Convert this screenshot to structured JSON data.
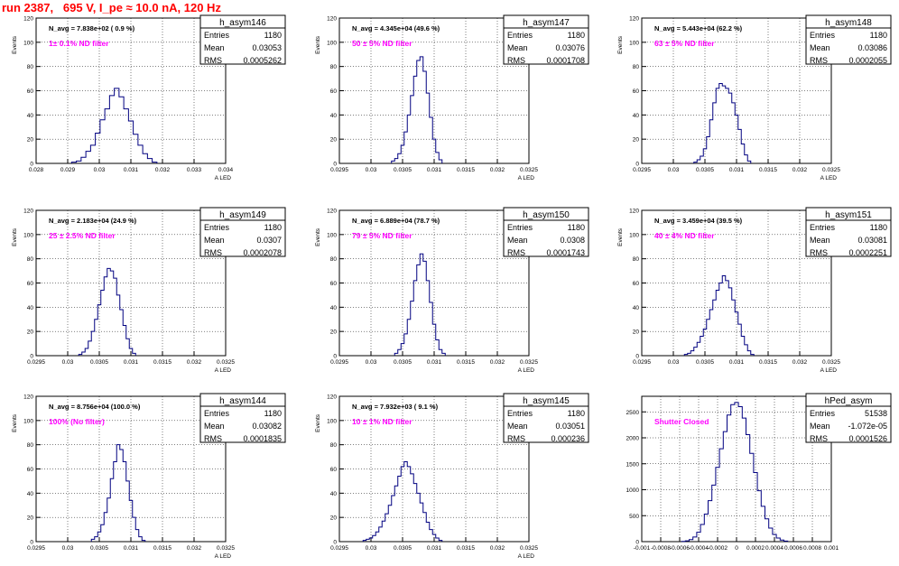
{
  "page": {
    "title": "run 2387,   695 V, I_pe ≈ 10.0 nA, 120 Hz"
  },
  "chart_data": [
    {
      "type": "bar",
      "title": "h_asym146",
      "stats": [
        [
          "Entries",
          "1180"
        ],
        [
          "Mean",
          "0.03053"
        ],
        [
          "RMS",
          "0.0005262"
        ]
      ],
      "annotation": "N_avg = 7.838e+02 ( 0.9 %)",
      "filter_label": "1± 0.1% ND filter",
      "xlabel": "A_LED",
      "ylabel": "Events",
      "xlim": [
        0.028,
        0.034
      ],
      "ylim": [
        0,
        120
      ],
      "xticks": [
        0.028,
        0.029,
        0.03,
        0.031,
        0.032,
        0.033,
        0.034
      ],
      "xtick_labels": [
        "0.028",
        "0.029",
        "0.03",
        "0.031",
        "0.032",
        "0.033",
        "0.034"
      ],
      "yticks": [
        0,
        20,
        40,
        60,
        80,
        100,
        120
      ],
      "ytick_labels": [
        "0",
        "20",
        "40",
        "60",
        "80",
        "100",
        "120"
      ],
      "grid": true,
      "x": [
        0.0292,
        0.02935,
        0.0295,
        0.02965,
        0.0298,
        0.02995,
        0.0301,
        0.03025,
        0.0304,
        0.03055,
        0.0307,
        0.03085,
        0.031,
        0.03115,
        0.0313,
        0.03145,
        0.0316,
        0.03175
      ],
      "values": [
        1,
        2,
        5,
        10,
        15,
        25,
        36,
        45,
        56,
        62,
        55,
        45,
        35,
        24,
        15,
        8,
        4,
        1
      ]
    },
    {
      "type": "bar",
      "title": "h_asym147",
      "stats": [
        [
          "Entries",
          "1180"
        ],
        [
          "Mean",
          "0.03076"
        ],
        [
          "RMS",
          "0.0001708"
        ]
      ],
      "annotation": "N_avg = 4.345e+04 (49.6 %)",
      "filter_label": "50 ± 5% ND filter",
      "xlabel": "A_LED",
      "ylabel": "Events",
      "xlim": [
        0.0295,
        0.0325
      ],
      "ylim": [
        0,
        120
      ],
      "xticks": [
        0.0295,
        0.03,
        0.0305,
        0.031,
        0.0315,
        0.032,
        0.0325
      ],
      "xtick_labels": [
        "0.0295",
        "0.03",
        "0.0305",
        "0.031",
        "0.0315",
        "0.032",
        "0.0325"
      ],
      "yticks": [
        0,
        20,
        40,
        60,
        80,
        100,
        120
      ],
      "ytick_labels": [
        "0",
        "20",
        "40",
        "60",
        "80",
        "100",
        "120"
      ],
      "grid": true,
      "x": [
        0.03035,
        0.0304,
        0.03045,
        0.0305,
        0.03055,
        0.0306,
        0.03065,
        0.0307,
        0.03075,
        0.0308,
        0.03085,
        0.0309,
        0.03095,
        0.031,
        0.03105,
        0.0311
      ],
      "values": [
        2,
        4,
        8,
        15,
        26,
        40,
        56,
        72,
        85,
        88,
        76,
        58,
        38,
        20,
        9,
        3
      ]
    },
    {
      "type": "bar",
      "title": "h_asym148",
      "stats": [
        [
          "Entries",
          "1180"
        ],
        [
          "Mean",
          "0.03086"
        ],
        [
          "RMS",
          "0.0002055"
        ]
      ],
      "annotation": "N_avg = 5.443e+04 (62.2 %)",
      "filter_label": "63 ± 5% ND filter",
      "xlabel": "A_LED",
      "ylabel": "Events",
      "xlim": [
        0.0295,
        0.0325
      ],
      "ylim": [
        0,
        120
      ],
      "xticks": [
        0.0295,
        0.03,
        0.0305,
        0.031,
        0.0315,
        0.032,
        0.0325
      ],
      "xtick_labels": [
        "0.0295",
        "0.03",
        "0.0305",
        "0.031",
        "0.0315",
        "0.032",
        "0.0325"
      ],
      "yticks": [
        0,
        20,
        40,
        60,
        80,
        100,
        120
      ],
      "ytick_labels": [
        "0",
        "20",
        "40",
        "60",
        "80",
        "100",
        "120"
      ],
      "grid": true,
      "x": [
        0.03035,
        0.0304,
        0.03045,
        0.0305,
        0.03055,
        0.0306,
        0.03065,
        0.0307,
        0.03075,
        0.0308,
        0.03085,
        0.0309,
        0.03095,
        0.031,
        0.03105,
        0.0311,
        0.03115,
        0.0312
      ],
      "values": [
        1,
        3,
        6,
        12,
        22,
        36,
        50,
        62,
        66,
        64,
        62,
        58,
        50,
        40,
        28,
        16,
        7,
        2
      ]
    },
    {
      "type": "bar",
      "title": "h_asym149",
      "stats": [
        [
          "Entries",
          "1180"
        ],
        [
          "Mean",
          "0.0307"
        ],
        [
          "RMS",
          "0.0002078"
        ]
      ],
      "annotation": "N_avg = 2.183e+04 (24.9 %)",
      "filter_label": "25 ± 2.5% ND filter",
      "xlabel": "A_LED",
      "ylabel": "Events",
      "xlim": [
        0.0295,
        0.0325
      ],
      "ylim": [
        0,
        120
      ],
      "xticks": [
        0.0295,
        0.03,
        0.0305,
        0.031,
        0.0315,
        0.032,
        0.0325
      ],
      "xtick_labels": [
        "0.0295",
        "0.03",
        "0.0305",
        "0.031",
        "0.0315",
        "0.032",
        "0.0325"
      ],
      "yticks": [
        0,
        20,
        40,
        60,
        80,
        100,
        120
      ],
      "ytick_labels": [
        "0",
        "20",
        "40",
        "60",
        "80",
        "100",
        "120"
      ],
      "grid": true,
      "x": [
        0.0302,
        0.03025,
        0.0303,
        0.03035,
        0.0304,
        0.03045,
        0.0305,
        0.03055,
        0.0306,
        0.03065,
        0.0307,
        0.03075,
        0.0308,
        0.03085,
        0.0309,
        0.03095,
        0.031,
        0.03105
      ],
      "values": [
        1,
        3,
        6,
        12,
        20,
        30,
        42,
        54,
        65,
        72,
        70,
        64,
        50,
        38,
        25,
        14,
        6,
        2
      ]
    },
    {
      "type": "bar",
      "title": "h_asym150",
      "stats": [
        [
          "Entries",
          "1180"
        ],
        [
          "Mean",
          "0.0308"
        ],
        [
          "RMS",
          "0.0001743"
        ]
      ],
      "annotation": "N_avg = 6.889e+04 (78.7 %)",
      "filter_label": "79 ± 5% ND filter",
      "xlabel": "A_LED",
      "ylabel": "Events",
      "xlim": [
        0.0295,
        0.0325
      ],
      "ylim": [
        0,
        120
      ],
      "xticks": [
        0.0295,
        0.03,
        0.0305,
        0.031,
        0.0315,
        0.032,
        0.0325
      ],
      "xtick_labels": [
        "0.0295",
        "0.03",
        "0.0305",
        "0.031",
        "0.0315",
        "0.032",
        "0.0325"
      ],
      "yticks": [
        0,
        20,
        40,
        60,
        80,
        100,
        120
      ],
      "ytick_labels": [
        "0",
        "20",
        "40",
        "60",
        "80",
        "100",
        "120"
      ],
      "grid": true,
      "x": [
        0.0304,
        0.03045,
        0.0305,
        0.03055,
        0.0306,
        0.03065,
        0.0307,
        0.03075,
        0.0308,
        0.03085,
        0.0309,
        0.03095,
        0.031,
        0.03105,
        0.0311,
        0.03115
      ],
      "values": [
        2,
        5,
        10,
        18,
        30,
        45,
        62,
        75,
        84,
        78,
        62,
        44,
        26,
        13,
        5,
        2
      ]
    },
    {
      "type": "bar",
      "title": "h_asym151",
      "stats": [
        [
          "Entries",
          "1180"
        ],
        [
          "Mean",
          "0.03081"
        ],
        [
          "RMS",
          "0.0002251"
        ]
      ],
      "annotation": "N_avg = 3.459e+04 (39.5 %)",
      "filter_label": "40 ± 4% ND filter",
      "xlabel": "A_LED",
      "ylabel": "Events",
      "xlim": [
        0.0295,
        0.0325
      ],
      "ylim": [
        0,
        120
      ],
      "xticks": [
        0.0295,
        0.03,
        0.0305,
        0.031,
        0.0315,
        0.032,
        0.0325
      ],
      "xtick_labels": [
        "0.0295",
        "0.03",
        "0.0305",
        "0.031",
        "0.0315",
        "0.032",
        "0.0325"
      ],
      "yticks": [
        0,
        20,
        40,
        60,
        80,
        100,
        120
      ],
      "ytick_labels": [
        "0",
        "20",
        "40",
        "60",
        "80",
        "100",
        "120"
      ],
      "grid": true,
      "x": [
        0.0302,
        0.03025,
        0.0303,
        0.03035,
        0.0304,
        0.03045,
        0.0305,
        0.03055,
        0.0306,
        0.03065,
        0.0307,
        0.03075,
        0.0308,
        0.03085,
        0.0309,
        0.03095,
        0.031,
        0.03105,
        0.0311,
        0.03115,
        0.0312,
        0.03125
      ],
      "values": [
        1,
        2,
        4,
        7,
        11,
        16,
        22,
        30,
        38,
        46,
        54,
        60,
        66,
        62,
        56,
        46,
        36,
        26,
        16,
        9,
        4,
        1
      ]
    },
    {
      "type": "bar",
      "title": "h_asym144",
      "stats": [
        [
          "Entries",
          "1180"
        ],
        [
          "Mean",
          "0.03082"
        ],
        [
          "RMS",
          "0.0001835"
        ]
      ],
      "annotation": "N_avg = 8.756e+04 (100.0 %)",
      "filter_label": "100% (No filter)",
      "xlabel": "A_LED",
      "ylabel": "Events",
      "xlim": [
        0.0295,
        0.0325
      ],
      "ylim": [
        0,
        120
      ],
      "xticks": [
        0.0295,
        0.03,
        0.0305,
        0.031,
        0.0315,
        0.032,
        0.0325
      ],
      "xtick_labels": [
        "0.0295",
        "0.03",
        "0.0305",
        "0.031",
        "0.0315",
        "0.032",
        "0.0325"
      ],
      "yticks": [
        0,
        20,
        40,
        60,
        80,
        100,
        120
      ],
      "ytick_labels": [
        "0",
        "20",
        "40",
        "60",
        "80",
        "100",
        "120"
      ],
      "grid": true,
      "x": [
        0.0304,
        0.03045,
        0.0305,
        0.03055,
        0.0306,
        0.03065,
        0.0307,
        0.03075,
        0.0308,
        0.03085,
        0.0309,
        0.03095,
        0.031,
        0.03105,
        0.0311,
        0.03115,
        0.0312
      ],
      "values": [
        2,
        4,
        8,
        14,
        24,
        36,
        52,
        66,
        80,
        76,
        66,
        50,
        34,
        20,
        10,
        4,
        1
      ]
    },
    {
      "type": "bar",
      "title": "h_asym145",
      "stats": [
        [
          "Entries",
          "1180"
        ],
        [
          "Mean",
          "0.03051"
        ],
        [
          "RMS",
          "0.000236"
        ]
      ],
      "annotation": "N_avg = 7.932e+03 ( 9.1 %)",
      "filter_label": "10 ± 1% ND filter",
      "xlabel": "A_LED",
      "ylabel": "Events",
      "xlim": [
        0.0295,
        0.0325
      ],
      "ylim": [
        0,
        120
      ],
      "xticks": [
        0.0295,
        0.03,
        0.0305,
        0.031,
        0.0315,
        0.032,
        0.0325
      ],
      "xtick_labels": [
        "0.0295",
        "0.03",
        "0.0305",
        "0.031",
        "0.0315",
        "0.032",
        "0.0325"
      ],
      "yticks": [
        0,
        20,
        40,
        60,
        80,
        100,
        120
      ],
      "ytick_labels": [
        "0",
        "20",
        "40",
        "60",
        "80",
        "100",
        "120"
      ],
      "grid": true,
      "x": [
        0.0299,
        0.02995,
        0.03,
        0.03005,
        0.0301,
        0.03015,
        0.0302,
        0.03025,
        0.0303,
        0.03035,
        0.0304,
        0.03045,
        0.0305,
        0.03055,
        0.0306,
        0.03065,
        0.0307,
        0.03075,
        0.0308,
        0.03085,
        0.0309,
        0.03095,
        0.031,
        0.03105,
        0.0311
      ],
      "values": [
        1,
        2,
        3,
        5,
        8,
        12,
        17,
        23,
        30,
        38,
        46,
        54,
        62,
        66,
        62,
        56,
        48,
        40,
        32,
        24,
        16,
        10,
        6,
        3,
        1
      ]
    },
    {
      "type": "bar",
      "title": "hPed_asym",
      "stats": [
        [
          "Entries",
          "51538"
        ],
        [
          "Mean",
          "-1.072e-05"
        ],
        [
          "RMS",
          "0.0001526"
        ]
      ],
      "annotation": "",
      "filter_label": "Shutter Closed",
      "xlabel": "",
      "ylabel": "",
      "xlim": [
        -0.001,
        0.001
      ],
      "ylim": [
        0,
        2800
      ],
      "xticks": [
        -0.001,
        -0.0008,
        -0.0006,
        -0.0004,
        -0.0002,
        0,
        0.0002,
        0.0004,
        0.0006,
        0.0008,
        0.001
      ],
      "xtick_labels": [
        "-0.001",
        "-0.0008",
        "-0.0006",
        "-0.0004",
        "-0.0002",
        "0",
        "0.0002",
        "0.0004",
        "0.0006",
        "0.0008",
        "0.001"
      ],
      "yticks": [
        0,
        500,
        1000,
        1500,
        2000,
        2500
      ],
      "ytick_labels": [
        "0",
        "500",
        "1000",
        "1500",
        "2000",
        "2500"
      ],
      "grid": true,
      "x": [
        -0.00056,
        -0.00052,
        -0.00048,
        -0.00044,
        -0.0004,
        -0.00036,
        -0.00032,
        -0.00028,
        -0.00024,
        -0.0002,
        -0.00016,
        -0.00012,
        -8e-05,
        -4e-05,
        0,
        4e-05,
        8e-05,
        0.00012,
        0.00016,
        0.0002,
        0.00024,
        0.00028,
        0.00032,
        0.00036,
        0.0004,
        0.00044,
        0.00048,
        0.00052
      ],
      "values": [
        5,
        15,
        40,
        90,
        180,
        330,
        530,
        790,
        1090,
        1430,
        1790,
        2120,
        2440,
        2640,
        2680,
        2600,
        2380,
        2060,
        1700,
        1330,
        980,
        680,
        440,
        260,
        140,
        70,
        30,
        10
      ]
    }
  ]
}
